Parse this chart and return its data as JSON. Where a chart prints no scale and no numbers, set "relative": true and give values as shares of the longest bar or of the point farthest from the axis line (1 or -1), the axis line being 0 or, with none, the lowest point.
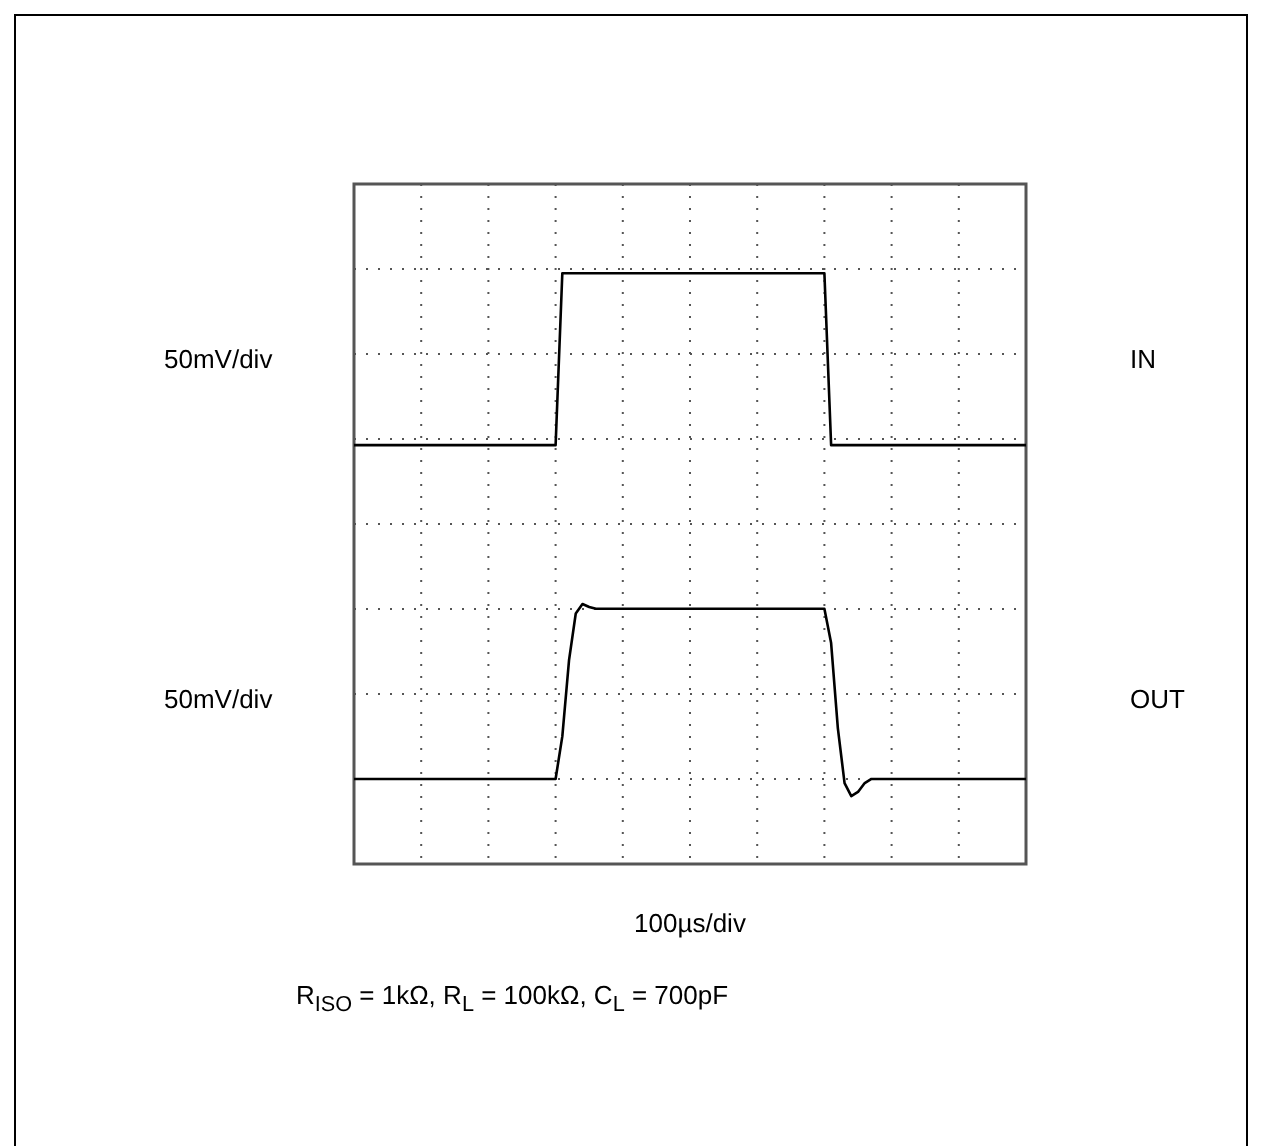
{
  "chart_data": {
    "type": "line",
    "relative": true,
    "xlabel": "100µs/div",
    "grid": true,
    "marker": "none",
    "line_style": "solid",
    "categories": [
      null,
      null,
      null,
      null,
      null,
      null,
      null,
      null,
      null,
      null,
      null,
      null,
      null,
      null,
      null,
      null,
      null,
      null,
      null,
      null,
      null,
      null,
      null,
      null,
      null,
      null,
      null,
      null,
      null,
      null,
      null,
      null,
      null,
      null,
      null,
      null,
      null,
      null,
      null,
      null,
      null,
      null,
      null,
      null,
      null,
      null,
      null,
      null,
      null,
      null,
      null,
      null,
      null,
      null,
      null,
      null,
      null,
      null,
      null,
      null,
      null,
      null,
      null,
      null,
      null,
      null,
      null,
      null,
      null,
      null,
      null,
      null,
      null,
      null,
      null,
      null,
      null,
      null,
      null,
      null,
      null,
      null,
      null,
      null,
      null,
      null,
      null,
      null,
      null,
      null,
      null,
      null,
      null,
      null,
      null,
      null,
      null,
      null,
      null,
      null,
      null
    ],
    "series": [
      {
        "name": "IN",
        "color": "#000000",
        "values": [
          0.709,
          0.709,
          0.709,
          0.709,
          0.709,
          0.709,
          0.709,
          0.709,
          0.709,
          0.709,
          0.709,
          0.709,
          0.709,
          0.709,
          0.709,
          0.709,
          0.709,
          0.709,
          0.709,
          0.709,
          0.709,
          0.709,
          0.709,
          0.709,
          0.709,
          0.709,
          0.709,
          0.709,
          0.709,
          0.709,
          0.709,
          1,
          1,
          1,
          1,
          1,
          1,
          1,
          1,
          1,
          1,
          1,
          1,
          1,
          1,
          1,
          1,
          1,
          1,
          1,
          1,
          1,
          1,
          1,
          1,
          1,
          1,
          1,
          1,
          1,
          1,
          1,
          1,
          1,
          1,
          1,
          1,
          1,
          1,
          1,
          1,
          0.709,
          0.709,
          0.709,
          0.709,
          0.709,
          0.709,
          0.709,
          0.709,
          0.709,
          0.709,
          0.709,
          0.709,
          0.709,
          0.709,
          0.709,
          0.709,
          0.709,
          0.709,
          0.709,
          0.709,
          0.709,
          0.709,
          0.709,
          0.709,
          0.709,
          0.709,
          0.709,
          0.709,
          0.709,
          0.709
        ]
      },
      {
        "name": "OUT",
        "color": "#000000",
        "values": [
          0.144,
          0.144,
          0.144,
          0.144,
          0.144,
          0.144,
          0.144,
          0.144,
          0.144,
          0.144,
          0.144,
          0.144,
          0.144,
          0.144,
          0.144,
          0.144,
          0.144,
          0.144,
          0.144,
          0.144,
          0.144,
          0.144,
          0.144,
          0.144,
          0.144,
          0.144,
          0.144,
          0.144,
          0.144,
          0.144,
          0.144,
          0.216,
          0.345,
          0.424,
          0.44,
          0.435,
          0.432,
          0.432,
          0.432,
          0.432,
          0.432,
          0.432,
          0.432,
          0.432,
          0.432,
          0.432,
          0.432,
          0.432,
          0.432,
          0.432,
          0.432,
          0.432,
          0.432,
          0.432,
          0.432,
          0.432,
          0.432,
          0.432,
          0.432,
          0.432,
          0.432,
          0.432,
          0.432,
          0.432,
          0.432,
          0.432,
          0.432,
          0.432,
          0.432,
          0.432,
          0.432,
          0.374,
          0.23,
          0.137,
          0.115,
          0.122,
          0.137,
          0.144,
          0.144,
          0.144,
          0.144,
          0.144,
          0.144,
          0.144,
          0.144,
          0.144,
          0.144,
          0.144,
          0.144,
          0.144,
          0.144,
          0.144,
          0.144,
          0.144,
          0.144,
          0.144,
          0.144,
          0.144,
          0.144,
          0.144,
          0.144
        ]
      }
    ],
    "annotations": [
      "50mV/div",
      "50mV/div",
      "R$_{ISO}$ = 1kΩ, R$_{L}$ = 100kΩ, C$_{L}$ = 700pF"
    ]
  }
}
